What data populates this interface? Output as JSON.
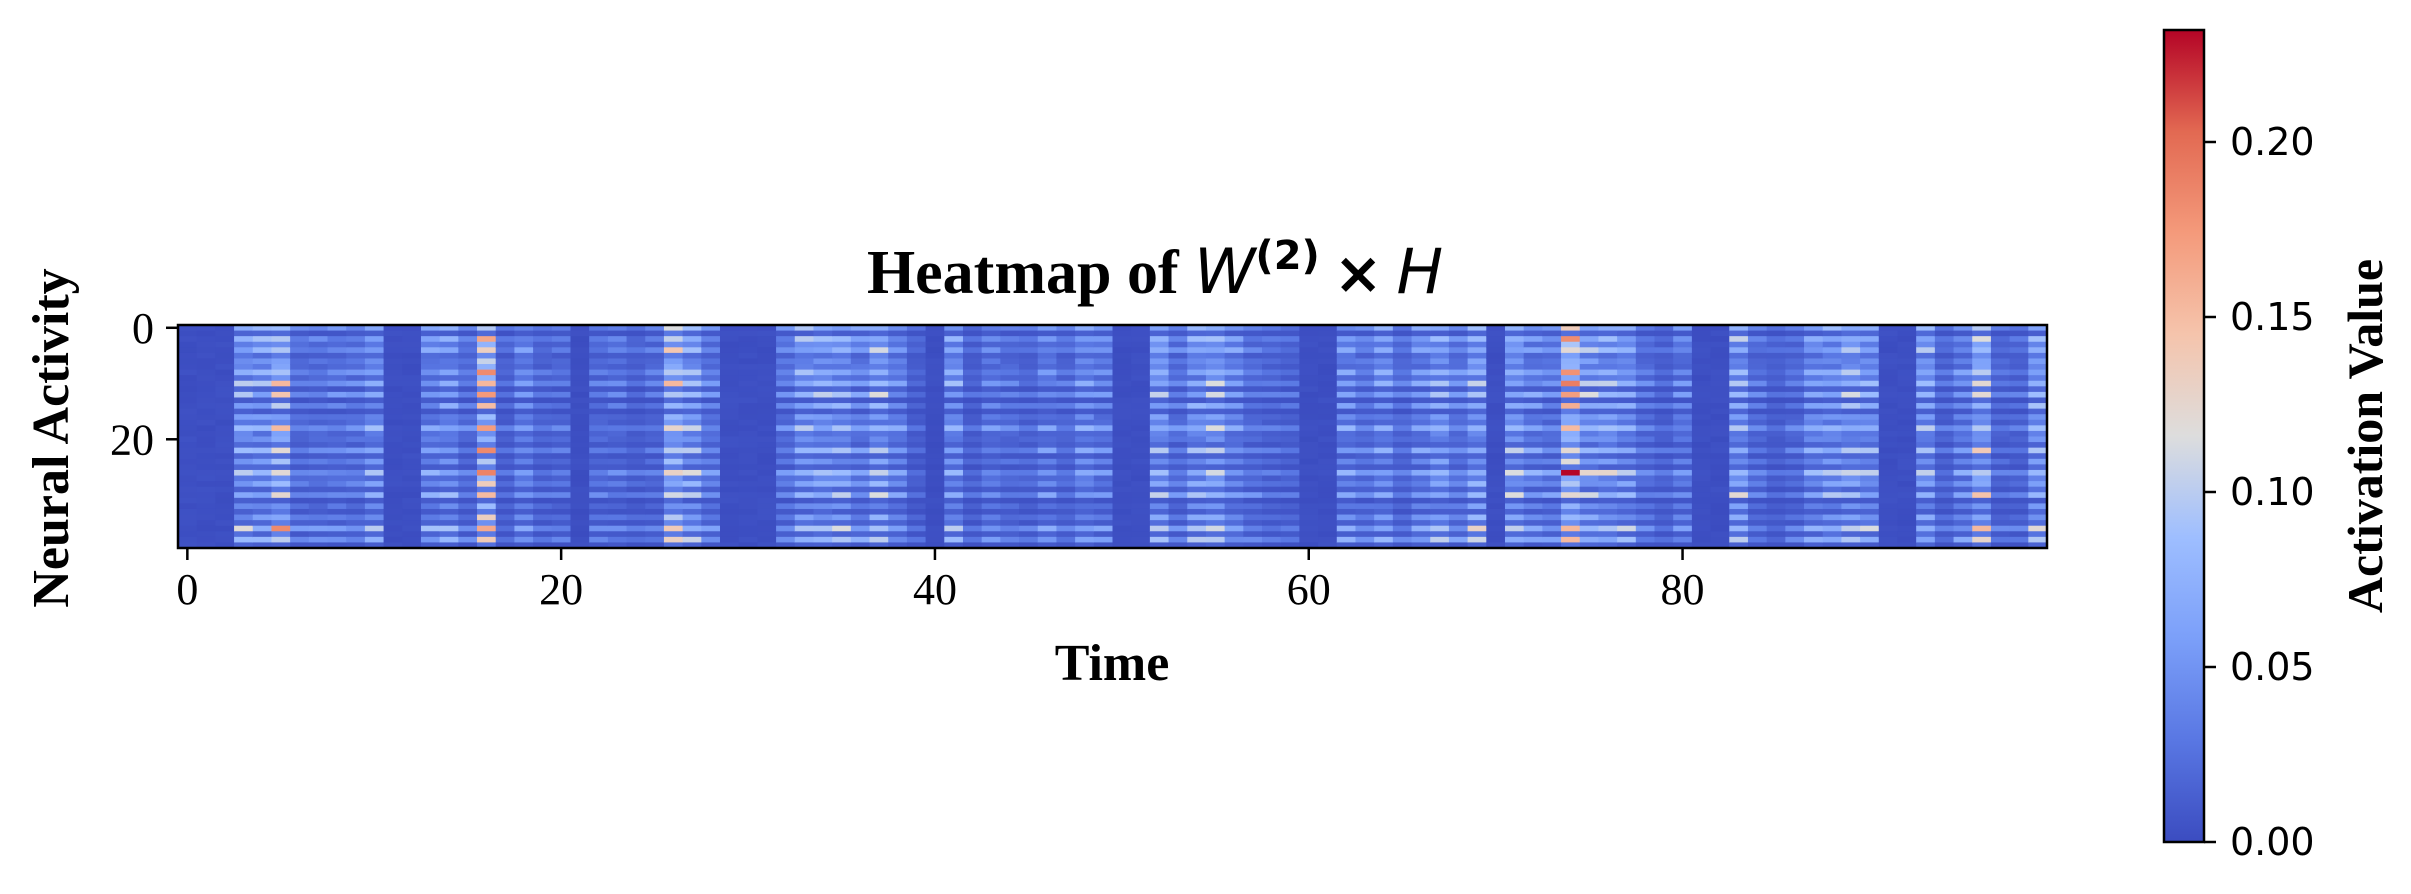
{
  "chart_data": {
    "type": "heatmap",
    "title_text": "Heatmap of ",
    "title_math": {
      "base": "W",
      "superscript": "(2)",
      "operator": "×",
      "rhs": "H"
    },
    "xlabel": "Time",
    "ylabel": "Neural Activity",
    "x_ticks": [
      "0",
      "20",
      "40",
      "60",
      "80"
    ],
    "y_ticks": [
      "0",
      "20"
    ],
    "n_rows": 40,
    "n_cols": 100,
    "active_column_bands": [
      [
        3,
        11
      ],
      [
        13,
        21
      ],
      [
        22,
        29
      ],
      [
        32,
        40
      ],
      [
        41,
        50
      ],
      [
        52,
        60
      ],
      [
        62,
        70
      ],
      [
        71,
        81
      ],
      [
        83,
        91
      ],
      [
        93,
        100
      ]
    ],
    "strongest_columns": [
      5,
      8,
      16,
      26,
      34,
      46,
      64,
      74,
      87,
      96
    ],
    "colormap": "coolwarm",
    "colorbar": {
      "label": "Activation Value",
      "ticks": [
        "0.00",
        "0.05",
        "0.10",
        "0.15",
        "0.20"
      ],
      "vmin": 0.0,
      "vmax": 0.232
    },
    "colors": {
      "low": "#3b4cc0",
      "mid": "#dddddd",
      "high": "#b40426"
    }
  }
}
